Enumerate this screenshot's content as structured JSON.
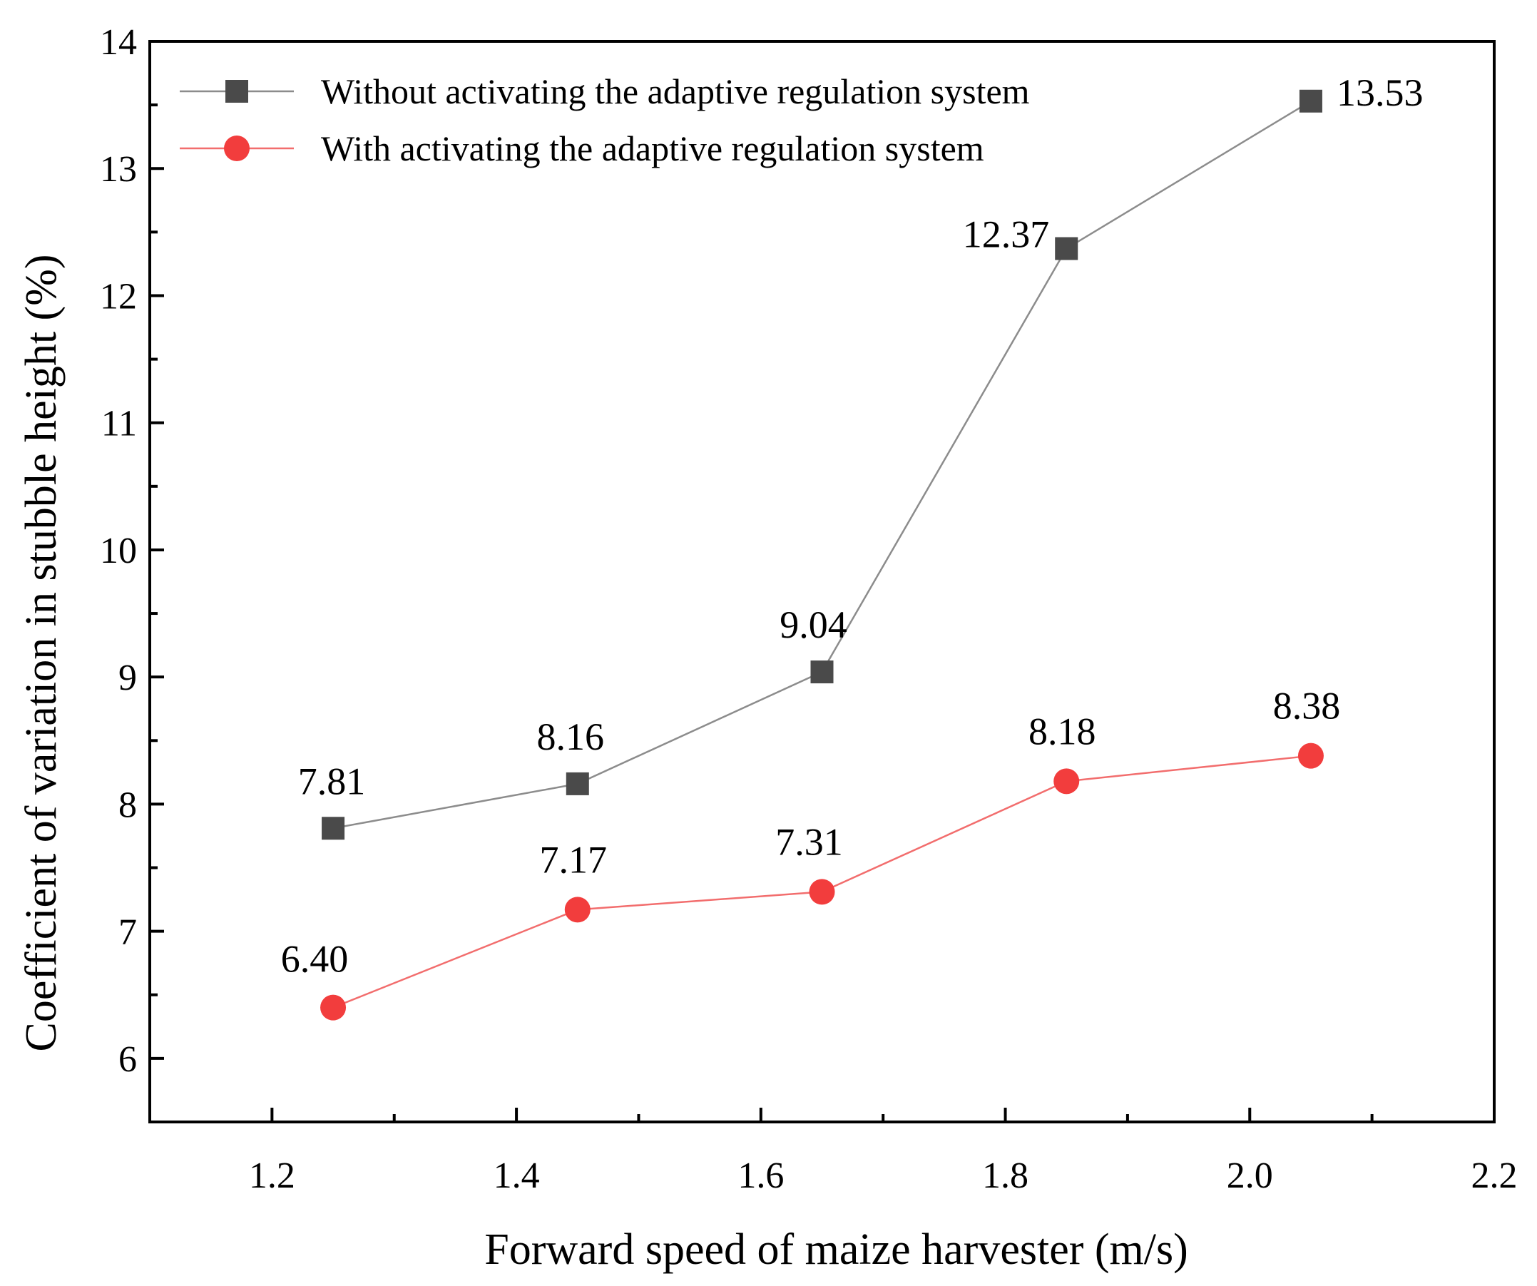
{
  "chart_data": {
    "type": "line",
    "title": "",
    "xlabel": "Forward speed of maize harvester (m/s)",
    "ylabel": "Coefficient of variation in stubble height (%)",
    "xlim": [
      1.1,
      2.2
    ],
    "ylim": [
      5.5,
      14
    ],
    "xticks": [
      1.2,
      1.4,
      1.6,
      1.8,
      2.0,
      2.2
    ],
    "xtick_labels": [
      "1.2",
      "1.4",
      "1.6",
      "1.8",
      "2.0",
      "2.2"
    ],
    "yticks": [
      6,
      7,
      8,
      9,
      10,
      11,
      12,
      13,
      14
    ],
    "ytick_labels": [
      "6",
      "7",
      "8",
      "9",
      "10",
      "11",
      "12",
      "13",
      "14"
    ],
    "x": [
      1.25,
      1.45,
      1.65,
      1.85,
      2.05
    ],
    "legend_position": "top-left",
    "grid": false,
    "series": [
      {
        "name": "Without activating the adaptive regulation system",
        "marker": "square",
        "color": "#4a4a4a",
        "line_color": "#8c8c8c",
        "values": [
          7.81,
          8.16,
          9.04,
          12.37,
          13.53
        ],
        "labels": [
          "7.81",
          "8.16",
          "9.04",
          "12.37",
          "13.53"
        ]
      },
      {
        "name": "With activating the adaptive regulation system",
        "marker": "circle",
        "color": "#f23d3d",
        "line_color": "#f26d6d",
        "values": [
          6.4,
          7.17,
          7.31,
          8.18,
          8.38
        ],
        "labels": [
          "6.40",
          "7.17",
          "7.31",
          "8.18",
          "8.38"
        ]
      }
    ]
  }
}
